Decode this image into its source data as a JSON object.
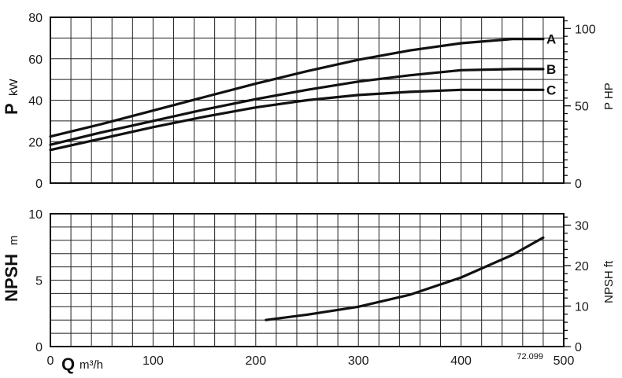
{
  "chart_data": [
    {
      "type": "line",
      "panel": "power",
      "x": [
        0,
        50,
        100,
        150,
        200,
        250,
        300,
        350,
        400,
        450,
        480
      ],
      "series": [
        {
          "name": "A",
          "values": [
            22.5,
            28.5,
            35,
            41.5,
            48,
            54,
            59.5,
            64,
            67.5,
            69.5,
            69.5
          ]
        },
        {
          "name": "B",
          "values": [
            18.5,
            24.5,
            30,
            35.5,
            40.5,
            45,
            49,
            52,
            54.5,
            55,
            55
          ]
        },
        {
          "name": "C",
          "values": [
            16,
            21.5,
            27,
            32,
            36.5,
            40,
            42.5,
            44,
            45,
            45,
            45
          ]
        }
      ],
      "xlim": [
        0,
        500
      ],
      "ylim": [
        0,
        80
      ],
      "y_ticks": [
        "0",
        "20",
        "40",
        "60",
        "80"
      ],
      "y_right_ticks": [
        "0",
        "50",
        "100"
      ],
      "ylabel_symbol": "P",
      "ylabel_unit": "kW",
      "y_right_label": "P HP",
      "grid": true
    },
    {
      "type": "line",
      "panel": "npsh",
      "x": [
        210,
        250,
        300,
        350,
        400,
        450,
        480
      ],
      "series": [
        {
          "name": "",
          "values": [
            2.0,
            2.4,
            3.0,
            3.9,
            5.2,
            6.9,
            8.2
          ]
        }
      ],
      "xlim": [
        0,
        500
      ],
      "ylim": [
        0,
        10
      ],
      "x_ticks": [
        "0",
        "100",
        "200",
        "300",
        "400",
        "500"
      ],
      "y_ticks": [
        "0",
        "5",
        "10"
      ],
      "y_right_ticks": [
        "0",
        "10",
        "20",
        "30"
      ],
      "ylabel_symbol": "NPSH",
      "ylabel_unit": "m",
      "y_right_label": "NPSH ft",
      "xlabel_symbol": "Q",
      "xlabel_unit": "m³/h",
      "code": "72.099",
      "grid": true
    }
  ]
}
